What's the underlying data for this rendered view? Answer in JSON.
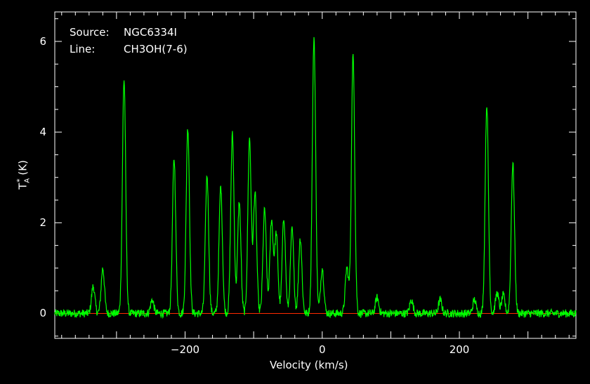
{
  "chart_data": {
    "type": "line",
    "source_label": "Source:",
    "source_value": "NGC6334I",
    "line_label": "Line:",
    "line_value": "CH3OH(7-6)",
    "xlabel": "Velocity (km/s)",
    "ylabel_main": "T",
    "ylabel_sub": "A",
    "ylabel_sup": "*",
    "ylabel_unit": "(K)",
    "xlim": [
      -390,
      370
    ],
    "ylim": [
      -0.55,
      6.65
    ],
    "xticks": [
      -200,
      0,
      200
    ],
    "xtick_labels": [
      "−200",
      "0",
      "200"
    ],
    "yticks": [
      0,
      2,
      4,
      6
    ],
    "ytick_labels": [
      "0",
      "2",
      "4",
      "6"
    ],
    "grid": false,
    "baseline": 0,
    "colors": {
      "spectrum": "#00ff00",
      "baseline": "#ff2a00",
      "axes": "#ffffff",
      "background": "#000000"
    },
    "series": [
      {
        "peaks": [
          {
            "v": -334,
            "t": 0.6
          },
          {
            "v": -320,
            "t": 1.0
          },
          {
            "v": -289,
            "t": 5.15
          },
          {
            "v": -248,
            "t": 0.3
          },
          {
            "v": -216,
            "t": 3.4
          },
          {
            "v": -196,
            "t": 4.1
          },
          {
            "v": -168,
            "t": 3.05
          },
          {
            "v": -148,
            "t": 2.8
          },
          {
            "v": -131,
            "t": 3.95
          },
          {
            "v": -121,
            "t": 2.45
          },
          {
            "v": -106,
            "t": 3.85
          },
          {
            "v": -98,
            "t": 2.65
          },
          {
            "v": -84,
            "t": 2.3
          },
          {
            "v": -74,
            "t": 2.05
          },
          {
            "v": -67,
            "t": 1.75
          },
          {
            "v": -56,
            "t": 2.1
          },
          {
            "v": -44,
            "t": 1.85
          },
          {
            "v": -32,
            "t": 1.65
          },
          {
            "v": -12,
            "t": 6.1
          },
          {
            "v": 0,
            "t": 1.0
          },
          {
            "v": 36,
            "t": 1.0
          },
          {
            "v": 45,
            "t": 5.7
          },
          {
            "v": 80,
            "t": 0.35
          },
          {
            "v": 130,
            "t": 0.3
          },
          {
            "v": 172,
            "t": 0.3
          },
          {
            "v": 222,
            "t": 0.3
          },
          {
            "v": 240,
            "t": 4.6
          },
          {
            "v": 255,
            "t": 0.45
          },
          {
            "v": 264,
            "t": 0.4
          },
          {
            "v": 278,
            "t": 3.3
          }
        ]
      }
    ]
  }
}
